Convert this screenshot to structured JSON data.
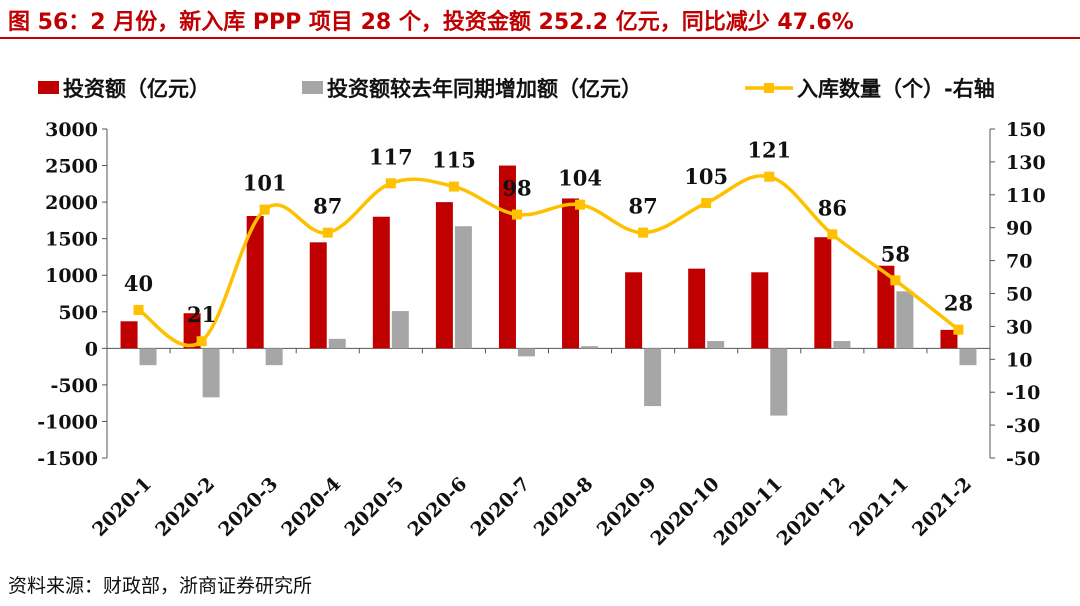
{
  "title": "图 56：2 月份，新入库 PPP 项目 28 个，投资金额 252.2 亿元，同比减少 47.6%",
  "source": "资料来源：财政部，浙商证券研究所",
  "colors": {
    "bar_primary": "#c00000",
    "bar_secondary": "#a6a6a6",
    "line": "#ffc000",
    "title": "#c00000"
  },
  "chart_data": {
    "type": "bar",
    "categories": [
      "2020-1",
      "2020-2",
      "2020-3",
      "2020-4",
      "2020-5",
      "2020-6",
      "2020-7",
      "2020-8",
      "2020-9",
      "2020-10",
      "2020-11",
      "2020-12",
      "2021-1",
      "2021-2"
    ],
    "series": [
      {
        "name": "投资额（亿元）",
        "type": "bar",
        "axis": "left",
        "values": [
          370,
          480,
          1810,
          1450,
          1800,
          2000,
          2500,
          2050,
          1040,
          1090,
          1040,
          1520,
          1130,
          252.2
        ]
      },
      {
        "name": "投资额较去年同期增加额（亿元）",
        "type": "bar",
        "axis": "left",
        "values": [
          -230,
          -670,
          -230,
          130,
          510,
          1670,
          -110,
          30,
          -790,
          100,
          -920,
          100,
          780,
          -230
        ]
      },
      {
        "name": "入库数量（个）-右轴",
        "type": "line",
        "axis": "right",
        "values": [
          40,
          21,
          101,
          87,
          117,
          115,
          98,
          104,
          87,
          105,
          121,
          86,
          58,
          28
        ],
        "data_labels": [
          "40",
          "21",
          "101",
          "87",
          "117",
          "115",
          "98",
          "104",
          "87",
          "105",
          "121",
          "86",
          "58",
          "28"
        ]
      }
    ],
    "y_left": {
      "min": -1500,
      "max": 3000,
      "ticks": [
        "3000",
        "2500",
        "2000",
        "1500",
        "1000",
        "500",
        "0",
        "-500",
        "-1000",
        "-1500"
      ]
    },
    "y_right": {
      "min": -50,
      "max": 150,
      "ticks": [
        "150",
        "130",
        "110",
        "90",
        "70",
        "50",
        "30",
        "10",
        "-10",
        "-30",
        "-50"
      ]
    },
    "legend_position": "top",
    "grid": false
  }
}
